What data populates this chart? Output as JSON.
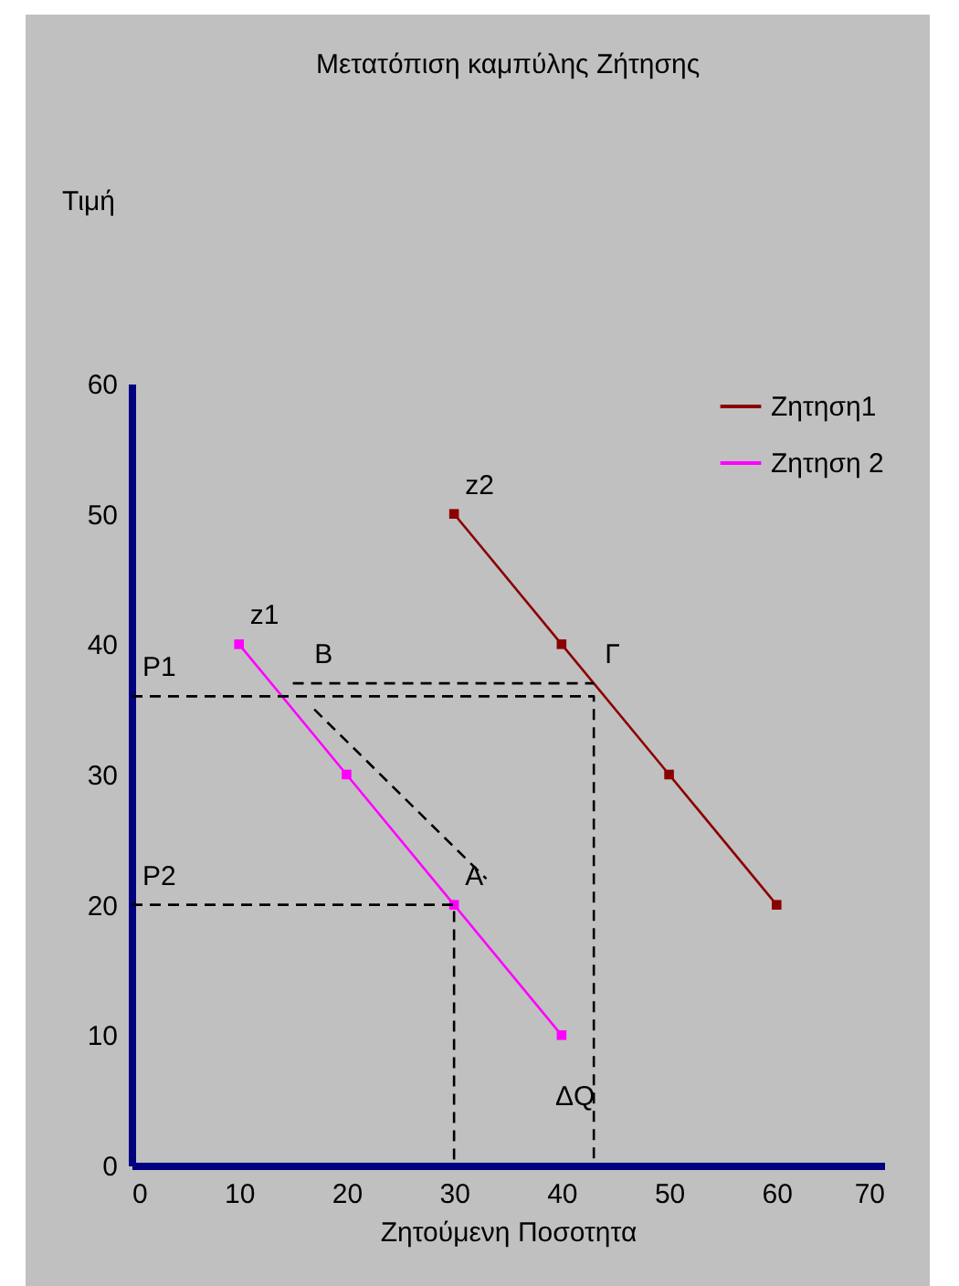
{
  "chart_data": {
    "type": "line",
    "title": "Μετατόπιση καμπύλης Ζήτησης",
    "xlabel": "Ζητούμενη Ποσοτητα",
    "xlim": [
      0,
      70
    ],
    "xticks": [
      0,
      10,
      20,
      30,
      40,
      50,
      60,
      70
    ],
    "ylim": [
      0,
      60
    ],
    "yticks": [
      0,
      10,
      20,
      30,
      40,
      50,
      60
    ],
    "grid": false,
    "legend": "top right",
    "marker": "square",
    "series": [
      {
        "name": "Ζητηση1",
        "color": "#8b0000",
        "x": [
          30,
          40,
          50,
          60
        ],
        "values": [
          50,
          40,
          30,
          20
        ]
      },
      {
        "name": "Ζητηση 2",
        "color": "#ff00ff",
        "x": [
          10,
          20,
          30,
          40
        ],
        "values": [
          40,
          30,
          20,
          10
        ]
      },
      {
        "color": "#000000",
        "x": [
          0,
          43,
          43
        ],
        "values": [
          36,
          36,
          0
        ],
        "line_style": "dashed",
        "marker": "none"
      },
      {
        "color": "#000000",
        "x": [
          0,
          30,
          30
        ],
        "values": [
          20,
          20,
          0
        ],
        "line_style": "dashed",
        "marker": "none"
      },
      {
        "color": "#000000",
        "x": [
          15,
          43
        ],
        "values": [
          37,
          37
        ],
        "line_style": "dashed",
        "marker": "none"
      },
      {
        "color": "#000000",
        "x": [
          17,
          33
        ],
        "values": [
          35,
          22
        ],
        "line_style": "dashed",
        "marker": "none"
      }
    ],
    "annotations": [
      "Τιμή",
      {
        "text": "z2",
        "x": 30,
        "y": 50
      },
      {
        "text": "z1",
        "x": 10,
        "y": 40
      },
      {
        "text": "P1",
        "x": 0,
        "y": 36
      },
      {
        "text": "P2",
        "x": 0,
        "y": 20
      },
      {
        "text": "B",
        "x": 16,
        "y": 37
      },
      {
        "text": "Γ",
        "x": 43,
        "y": 37
      },
      {
        "text": "A",
        "x": 30,
        "y": 20
      },
      "ΔQ"
    ]
  }
}
